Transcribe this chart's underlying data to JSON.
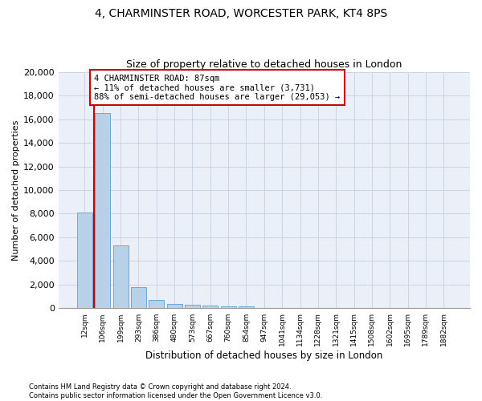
{
  "title1": "4, CHARMINSTER ROAD, WORCESTER PARK, KT4 8PS",
  "title2": "Size of property relative to detached houses in London",
  "xlabel": "Distribution of detached houses by size in London",
  "ylabel": "Number of detached properties",
  "categories": [
    "12sqm",
    "106sqm",
    "199sqm",
    "293sqm",
    "386sqm",
    "480sqm",
    "573sqm",
    "667sqm",
    "760sqm",
    "854sqm",
    "947sqm",
    "1041sqm",
    "1134sqm",
    "1228sqm",
    "1321sqm",
    "1415sqm",
    "1508sqm",
    "1602sqm",
    "1695sqm",
    "1789sqm",
    "1882sqm"
  ],
  "values": [
    8100,
    16500,
    5300,
    1820,
    680,
    360,
    275,
    220,
    190,
    170,
    0,
    0,
    0,
    0,
    0,
    0,
    0,
    0,
    0,
    0,
    0
  ],
  "bar_color": "#b8d0e8",
  "bar_edge_color": "#6aaad4",
  "grid_color": "#c8d4e4",
  "bg_color": "#eaeff8",
  "annotation_box_text": "4 CHARMINSTER ROAD: 87sqm\n← 11% of detached houses are smaller (3,731)\n88% of semi-detached houses are larger (29,053) →",
  "vline_color": "#cc0000",
  "annotation_box_color": "#cc0000",
  "ylim": [
    0,
    20000
  ],
  "yticks": [
    0,
    2000,
    4000,
    6000,
    8000,
    10000,
    12000,
    14000,
    16000,
    18000,
    20000
  ],
  "footer1": "Contains HM Land Registry data © Crown copyright and database right 2024.",
  "footer2": "Contains public sector information licensed under the Open Government Licence v3.0."
}
